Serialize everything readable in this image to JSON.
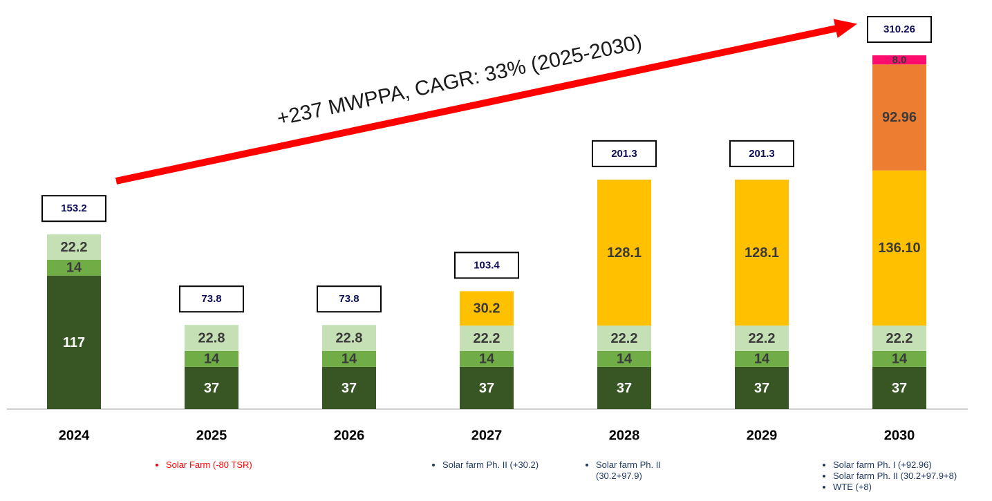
{
  "chart_data": {
    "type": "stacked_bar",
    "annotation": "+237 MWPPA, CAGR: 33% (2025-2030)",
    "categories": [
      "2024",
      "2025",
      "2026",
      "2027",
      "2028",
      "2029",
      "2030"
    ],
    "series": [
      {
        "color": "#375623",
        "label_color": "#ffffff",
        "values": [
          117,
          37,
          37,
          37,
          37,
          37,
          37
        ]
      },
      {
        "color": "#70ad47",
        "label_color": "#3a3a3a",
        "values": [
          14,
          14,
          14,
          14,
          14,
          14,
          14
        ]
      },
      {
        "color": "#c5e0b4",
        "label_color": "#3a3a3a",
        "values": [
          22.2,
          22.8,
          22.8,
          22.2,
          22.2,
          22.2,
          22.2
        ]
      },
      {
        "color": "#ffc000",
        "label_color": "#3a3a3a",
        "values": [
          null,
          null,
          null,
          30.2,
          128.1,
          128.1,
          136.1
        ],
        "value_labels": [
          null,
          null,
          null,
          "30.2",
          "128.1",
          "128.1",
          "136.10"
        ]
      },
      {
        "color": "#ed7d31",
        "label_color": "#3a3a3a",
        "values": [
          null,
          null,
          null,
          null,
          null,
          null,
          92.96
        ]
      },
      {
        "color": "#ff0d6e",
        "label_color": "#3a3a3a",
        "values": [
          null,
          null,
          null,
          null,
          null,
          null,
          8.0
        ],
        "value_labels": [
          null,
          null,
          null,
          null,
          null,
          null,
          "8.0"
        ]
      }
    ],
    "totals": [
      153.2,
      73.8,
      73.8,
      103.4,
      201.3,
      201.3,
      310.26
    ],
    "arrow_color": "#ff0000",
    "notes": [
      [],
      [
        {
          "text": "Solar Farm (-80 TSR)",
          "color": "#ff0000"
        }
      ],
      [],
      [
        {
          "text": "Solar farm Ph. II (+30.2)",
          "color": "#1f3864"
        }
      ],
      [
        {
          "text": "Solar farm Ph. II (30.2+97.9)",
          "color": "#1f3864"
        }
      ],
      [],
      [
        {
          "text": "Solar farm Ph. I (+92.96)",
          "color": "#1f3864"
        },
        {
          "text": "Solar farm Ph. II (30.2+97.9+8)",
          "color": "#1f3864"
        },
        {
          "text": "WTE (+8)",
          "color": "#1f3864"
        }
      ]
    ]
  }
}
